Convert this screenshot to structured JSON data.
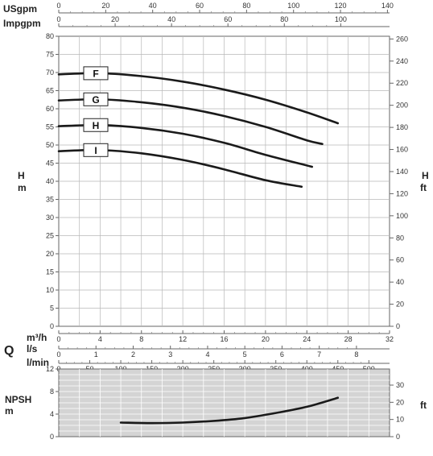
{
  "axis_labels": {
    "usgpm": "USgpm",
    "impgpm": "Impgpm",
    "h_left_1": "H",
    "h_left_2": "m",
    "h_right_1": "H",
    "h_right_2": "ft",
    "m3h": "m³/h",
    "ls": "l/s",
    "q": "Q",
    "lmin": "l/min",
    "npsh_1": "NPSH",
    "npsh_2": "m",
    "npsh_ft": "ft"
  },
  "chart_data": [
    {
      "type": "line",
      "title": "",
      "xlabel": "m³/h",
      "ylabel": "H m",
      "xlim": [
        0,
        32
      ],
      "ylim": [
        0,
        80
      ],
      "grid": true,
      "y_ticks": [
        "0",
        "5",
        "10",
        "15",
        "20",
        "25",
        "30",
        "35",
        "40",
        "45",
        "50",
        "55",
        "60",
        "65",
        "70",
        "75",
        "80"
      ],
      "y2_label": "H ft",
      "y2_ticks": [
        "0",
        "20",
        "40",
        "60",
        "80",
        "100",
        "120",
        "140",
        "160",
        "180",
        "200",
        "220",
        "240",
        "260"
      ],
      "top_axes": [
        {
          "label": "USgpm",
          "ticks": [
            "0",
            "20",
            "40",
            "60",
            "80",
            "100",
            "120",
            "140"
          ]
        },
        {
          "label": "Impgpm",
          "ticks": [
            "0",
            "20",
            "40",
            "60",
            "80",
            "100"
          ]
        }
      ],
      "series": [
        {
          "name": "F",
          "x": [
            0,
            4,
            8,
            12,
            16,
            20,
            24,
            27
          ],
          "y": [
            69.5,
            69.8,
            69.0,
            67.5,
            65.3,
            62.5,
            59.0,
            56.0
          ]
        },
        {
          "name": "G",
          "x": [
            0,
            4,
            8,
            12,
            16,
            20,
            24,
            25.5
          ],
          "y": [
            62.3,
            62.6,
            61.8,
            60.3,
            58.0,
            55.0,
            51.3,
            50.3
          ]
        },
        {
          "name": "H",
          "x": [
            0,
            4,
            8,
            12,
            16,
            20,
            24.5
          ],
          "y": [
            55.2,
            55.5,
            54.7,
            53.1,
            50.6,
            47.3,
            44.0
          ]
        },
        {
          "name": "I",
          "x": [
            0,
            4,
            8,
            12,
            16,
            20,
            23.5
          ],
          "y": [
            48.3,
            48.6,
            47.7,
            45.9,
            43.3,
            40.3,
            38.5
          ]
        }
      ]
    },
    {
      "type": "line",
      "title": "",
      "xlabel": "l/min",
      "ylabel": "NPSH m",
      "xlim": [
        0,
        533.3
      ],
      "ylim": [
        0,
        12
      ],
      "grid": true,
      "y_ticks": [
        "0",
        "4",
        "8",
        "12"
      ],
      "y2_label": "ft",
      "y2_ticks": [
        "0",
        "10",
        "20",
        "30"
      ],
      "bottom_axes": [
        {
          "label": "m³/h",
          "ticks": [
            "0",
            "4",
            "8",
            "12",
            "16",
            "20",
            "24",
            "28",
            "32"
          ]
        },
        {
          "label": "l/s",
          "ticks": [
            "0",
            "1",
            "2",
            "3",
            "4",
            "5",
            "6",
            "7",
            "8"
          ]
        },
        {
          "label": "l/min",
          "ticks": [
            "0",
            "50",
            "100",
            "150",
            "200",
            "250",
            "300",
            "350",
            "400",
            "450",
            "500"
          ]
        }
      ],
      "series": [
        {
          "name": "NPSH",
          "x": [
            100,
            150,
            200,
            250,
            300,
            350,
            400,
            450
          ],
          "y": [
            2.5,
            2.4,
            2.5,
            2.8,
            3.3,
            4.2,
            5.3,
            6.9
          ]
        }
      ]
    }
  ]
}
